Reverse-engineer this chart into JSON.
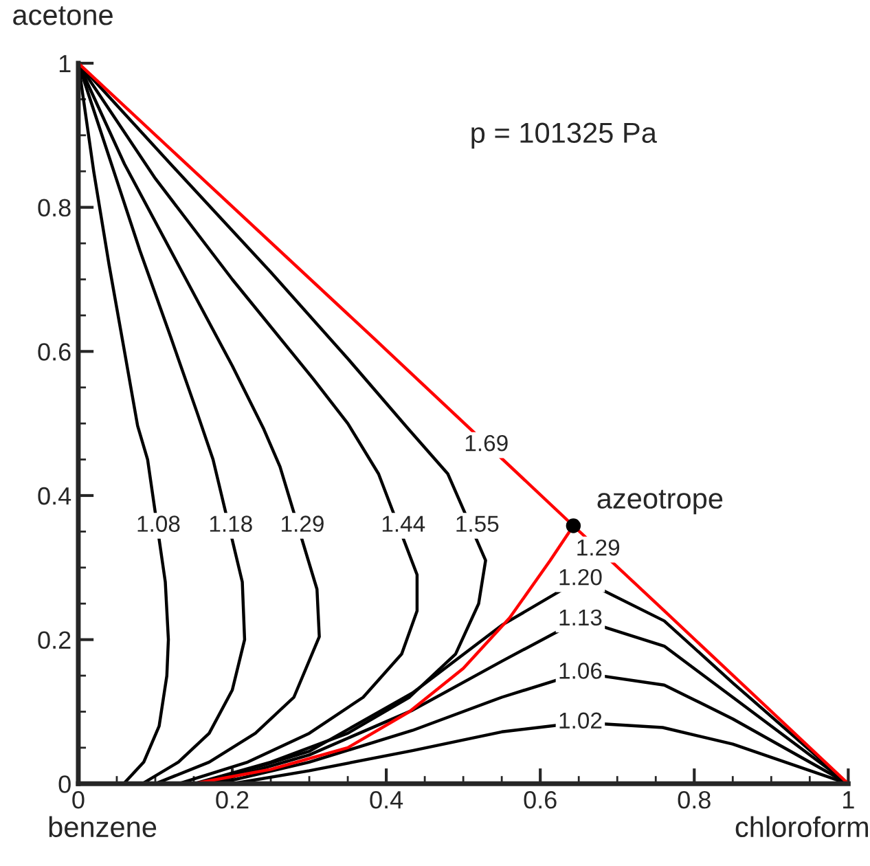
{
  "chart_data": {
    "type": "line",
    "xlabel": "chloroform",
    "ylabel": "acetone",
    "xlim": [
      0,
      1
    ],
    "ylim": [
      0,
      1
    ],
    "xticks": [
      0,
      0.2,
      0.4,
      0.6,
      0.8,
      1
    ],
    "yticks": [
      0,
      0.2,
      0.4,
      0.6,
      0.8,
      1
    ],
    "grid": false,
    "legend": false,
    "marker": "none",
    "line_style": "solid",
    "series": [
      {
        "color": "#000000",
        "x": [
          0.059,
          0.085,
          0.105,
          0.115,
          0.117,
          0.113,
          0.09,
          0.077,
          0.06,
          0.04,
          0.02,
          0
        ],
        "values": [
          0,
          0.03,
          0.08,
          0.15,
          0.2,
          0.28,
          0.45,
          0.497,
          0.6,
          0.72,
          0.85,
          1
        ]
      },
      {
        "color": "#000000",
        "x": [
          0.083,
          0.13,
          0.17,
          0.2,
          0.216,
          0.213,
          0.175,
          0.154,
          0.12,
          0.08,
          0.04,
          0
        ],
        "values": [
          0,
          0.03,
          0.07,
          0.13,
          0.2,
          0.28,
          0.45,
          0.516,
          0.62,
          0.74,
          0.87,
          1
        ]
      },
      {
        "color": "#000000",
        "x": [
          0.1,
          0.17,
          0.23,
          0.28,
          0.313,
          0.31,
          0.262,
          0.241,
          0.2,
          0.13,
          0.06,
          0
        ],
        "values": [
          0,
          0.03,
          0.07,
          0.12,
          0.204,
          0.27,
          0.44,
          0.492,
          0.58,
          0.72,
          0.86,
          1
        ]
      },
      {
        "color": "#000000",
        "x": [
          0.13,
          0.22,
          0.3,
          0.37,
          0.42,
          0.44,
          0.44,
          0.39,
          0.35,
          0.305,
          0.2,
          0.1,
          0
        ],
        "values": [
          0,
          0.03,
          0.07,
          0.12,
          0.18,
          0.24,
          0.29,
          0.43,
          0.5,
          0.562,
          0.7,
          0.84,
          1
        ]
      },
      {
        "color": "#000000",
        "x": [
          0.15,
          0.25,
          0.35,
          0.43,
          0.49,
          0.52,
          0.529,
          0.48,
          0.429,
          0.35,
          0.25,
          0.12,
          0
        ],
        "values": [
          0,
          0.03,
          0.07,
          0.12,
          0.18,
          0.25,
          0.31,
          0.43,
          0.492,
          0.59,
          0.71,
          0.86,
          1
        ]
      },
      {
        "color": "#000000",
        "x": [
          0.16,
          0.3,
          0.434,
          0.55,
          0.652,
          0.761,
          0.85,
          1
        ],
        "values": [
          0,
          0.045,
          0.126,
          0.22,
          0.284,
          0.226,
          0.14,
          0
        ]
      },
      {
        "color": "#000000",
        "x": [
          0.17,
          0.3,
          0.434,
          0.55,
          0.652,
          0.761,
          0.85,
          1
        ],
        "values": [
          0,
          0.04,
          0.102,
          0.17,
          0.228,
          0.191,
          0.12,
          0
        ]
      },
      {
        "color": "#000000",
        "x": [
          0.18,
          0.3,
          0.434,
          0.55,
          0.652,
          0.761,
          0.85,
          1
        ],
        "values": [
          0,
          0.03,
          0.074,
          0.12,
          0.154,
          0.137,
          0.09,
          0
        ]
      },
      {
        "color": "#000000",
        "x": [
          0.2,
          0.3,
          0.434,
          0.55,
          0.652,
          0.759,
          0.85,
          1
        ],
        "values": [
          0,
          0.018,
          0.046,
          0.072,
          0.085,
          0.078,
          0.055,
          0
        ]
      },
      {
        "color": "#ff0000",
        "x": [
          0.15,
          0.25,
          0.35,
          0.43,
          0.5,
          0.56,
          0.613,
          0.643
        ],
        "values": [
          0,
          0.02,
          0.05,
          0.1,
          0.16,
          0.23,
          0.31,
          0.358
        ]
      },
      {
        "color": "#ff0000",
        "x": [
          0.643,
          0.384,
          0
        ],
        "values": [
          0.358,
          0.618,
          1
        ]
      },
      {
        "color": "#ff0000",
        "x": [
          0.643,
          0.761,
          1
        ],
        "values": [
          0.358,
          0.24,
          0
        ]
      },
      {
        "type": "scatter",
        "marker": "circle",
        "color": "#000000",
        "x": [
          0.643
        ],
        "values": [
          0.358
        ]
      }
    ],
    "annotations": [
      {
        "text": "1.08",
        "x": 0.104,
        "y": 0.358
      },
      {
        "text": "1.18",
        "x": 0.198,
        "y": 0.358
      },
      {
        "text": "1.29",
        "x": 0.291,
        "y": 0.358
      },
      {
        "text": "1.44",
        "x": 0.422,
        "y": 0.358
      },
      {
        "text": "1.55",
        "x": 0.518,
        "y": 0.358
      },
      {
        "text": "1.20",
        "x": 0.652,
        "y": 0.284
      },
      {
        "text": "1.13",
        "x": 0.652,
        "y": 0.228
      },
      {
        "text": "1.06",
        "x": 0.652,
        "y": 0.154
      },
      {
        "text": "1.02",
        "x": 0.652,
        "y": 0.085
      },
      {
        "text": "1.69",
        "x": 0.53,
        "y": 0.47
      },
      {
        "text": "1.29",
        "x": 0.675,
        "y": 0.325
      },
      {
        "text": "azeotrope",
        "x": 0.643,
        "y": 0.358
      },
      "p = 101325 Pa",
      "benzene"
    ]
  }
}
